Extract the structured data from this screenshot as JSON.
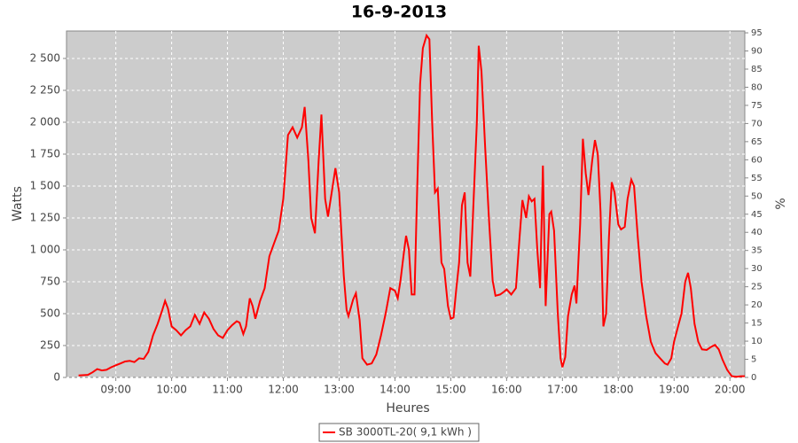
{
  "chart_data": {
    "type": "line",
    "title": "16-9-2013",
    "x_label": "Heures",
    "y_label": "Watts",
    "y2_label": "%",
    "x": [
      "08:20",
      "08:30",
      "08:35",
      "08:40",
      "08:45",
      "08:50",
      "08:55",
      "09:00",
      "09:05",
      "09:10",
      "09:15",
      "09:20",
      "09:25",
      "09:30",
      "09:35",
      "09:40",
      "09:45",
      "09:50",
      "09:53",
      "09:56",
      "10:00",
      "10:05",
      "10:10",
      "10:15",
      "10:20",
      "10:25",
      "10:30",
      "10:35",
      "10:40",
      "10:45",
      "10:50",
      "10:55",
      "11:00",
      "11:05",
      "11:10",
      "11:13",
      "11:17",
      "11:20",
      "11:24",
      "11:27",
      "11:30",
      "11:35",
      "11:40",
      "11:45",
      "11:50",
      "11:55",
      "12:00",
      "12:05",
      "12:10",
      "12:15",
      "12:20",
      "12:23",
      "12:27",
      "12:30",
      "12:34",
      "12:38",
      "12:41",
      "12:45",
      "12:48",
      "12:52",
      "12:56",
      "13:00",
      "13:05",
      "13:08",
      "13:10",
      "13:15",
      "13:18",
      "13:22",
      "13:25",
      "13:30",
      "13:35",
      "13:40",
      "13:45",
      "13:50",
      "13:55",
      "14:00",
      "14:03",
      "14:06",
      "14:10",
      "14:12",
      "14:15",
      "14:18",
      "14:21",
      "14:24",
      "14:27",
      "14:30",
      "14:34",
      "14:37",
      "14:40",
      "14:43",
      "14:46",
      "14:50",
      "14:53",
      "14:57",
      "15:00",
      "15:03",
      "15:06",
      "15:09",
      "15:12",
      "15:15",
      "15:18",
      "15:21",
      "15:24",
      "15:28",
      "15:30",
      "15:33",
      "15:37",
      "15:41",
      "15:45",
      "15:48",
      "15:53",
      "15:57",
      "16:00",
      "16:05",
      "16:10",
      "16:14",
      "16:17",
      "16:21",
      "16:24",
      "16:27",
      "16:30",
      "16:33",
      "16:36",
      "16:39",
      "16:42",
      "16:46",
      "16:48",
      "16:51",
      "16:55",
      "16:58",
      "17:00",
      "17:03",
      "17:06",
      "17:10",
      "17:13",
      "17:15",
      "17:19",
      "17:22",
      "17:25",
      "17:28",
      "17:32",
      "17:35",
      "17:38",
      "17:41",
      "17:44",
      "17:47",
      "17:50",
      "17:53",
      "17:56",
      "18:00",
      "18:03",
      "18:07",
      "18:10",
      "18:14",
      "18:17",
      "18:21",
      "18:25",
      "18:30",
      "18:35",
      "18:40",
      "18:45",
      "18:50",
      "18:53",
      "18:57",
      "19:00",
      "19:05",
      "19:08",
      "19:12",
      "19:15",
      "19:18",
      "19:22",
      "19:26",
      "19:30",
      "19:35",
      "19:40",
      "19:44",
      "19:48",
      "19:52",
      "19:57",
      "20:02",
      "20:07",
      "20:12",
      "20:16"
    ],
    "series": [
      {
        "name": "SB 3000TL-20( 9,1 kWh )",
        "color": "#ff0000",
        "values": [
          15,
          20,
          40,
          65,
          55,
          60,
          80,
          95,
          110,
          125,
          130,
          120,
          150,
          145,
          200,
          330,
          420,
          530,
          600,
          540,
          400,
          370,
          330,
          370,
          400,
          490,
          420,
          510,
          460,
          380,
          330,
          310,
          370,
          410,
          440,
          430,
          340,
          400,
          620,
          560,
          460,
          600,
          700,
          950,
          1050,
          1150,
          1400,
          1900,
          1960,
          1880,
          1960,
          2120,
          1700,
          1250,
          1130,
          1700,
          2060,
          1400,
          1260,
          1450,
          1640,
          1450,
          800,
          530,
          480,
          610,
          660,
          450,
          150,
          100,
          110,
          180,
          330,
          500,
          700,
          680,
          620,
          760,
          1000,
          1110,
          1000,
          650,
          650,
          1500,
          2300,
          2580,
          2680,
          2650,
          2000,
          1450,
          1480,
          900,
          850,
          560,
          460,
          470,
          700,
          900,
          1350,
          1450,
          900,
          790,
          1300,
          2000,
          2600,
          2400,
          1800,
          1250,
          760,
          640,
          650,
          670,
          690,
          650,
          700,
          1100,
          1390,
          1250,
          1420,
          1380,
          1400,
          1000,
          700,
          1660,
          560,
          1280,
          1300,
          1150,
          500,
          150,
          80,
          160,
          480,
          650,
          720,
          580,
          1200,
          1870,
          1600,
          1430,
          1700,
          1860,
          1750,
          1300,
          400,
          500,
          1100,
          1530,
          1450,
          1200,
          1160,
          1180,
          1400,
          1550,
          1500,
          1100,
          750,
          480,
          280,
          190,
          150,
          110,
          100,
          150,
          280,
          420,
          500,
          750,
          820,
          700,
          420,
          280,
          220,
          215,
          240,
          255,
          220,
          140,
          60,
          10,
          5,
          10,
          10
        ]
      }
    ],
    "xlim": [
      "08:07",
      "20:16"
    ],
    "xticks": [
      "09:00",
      "10:00",
      "11:00",
      "12:00",
      "13:00",
      "14:00",
      "15:00",
      "16:00",
      "17:00",
      "18:00",
      "19:00",
      "20:00"
    ],
    "ylim": [
      0,
      2715
    ],
    "yticks": [
      0,
      250,
      500,
      750,
      {
        "value": 1000,
        "label": "1 000"
      },
      {
        "value": 1250,
        "label": "1 250"
      },
      {
        "value": 1500,
        "label": "1 500"
      },
      {
        "value": 1750,
        "label": "1 750"
      },
      {
        "value": 2000,
        "label": "2 000"
      },
      {
        "value": 2250,
        "label": "2 250"
      },
      {
        "value": 2500,
        "label": "2 500"
      }
    ],
    "y2lim": [
      0,
      95.5
    ],
    "y2ticks": [
      0,
      5,
      10,
      15,
      20,
      25,
      30,
      35,
      40,
      45,
      50,
      55,
      60,
      65,
      70,
      75,
      80,
      85,
      90,
      95
    ],
    "grid": true,
    "legend": "bottom",
    "background": "#cccccc"
  }
}
